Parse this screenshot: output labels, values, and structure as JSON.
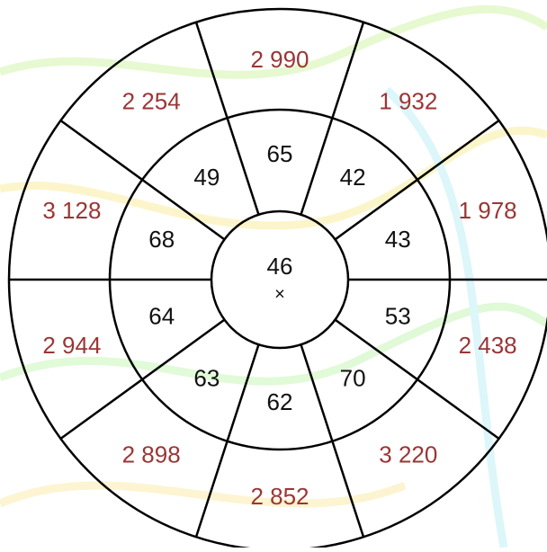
{
  "center": {
    "value": "46",
    "mark": "×"
  },
  "inner_ring": [
    "65",
    "42",
    "43",
    "53",
    "70",
    "62",
    "63",
    "64",
    "68",
    "49"
  ],
  "outer_ring": [
    "2 990",
    "1 932",
    "1 978",
    "2 438",
    "3 220",
    "2 852",
    "2 898",
    "2 944",
    "3 128",
    "2 254"
  ]
}
